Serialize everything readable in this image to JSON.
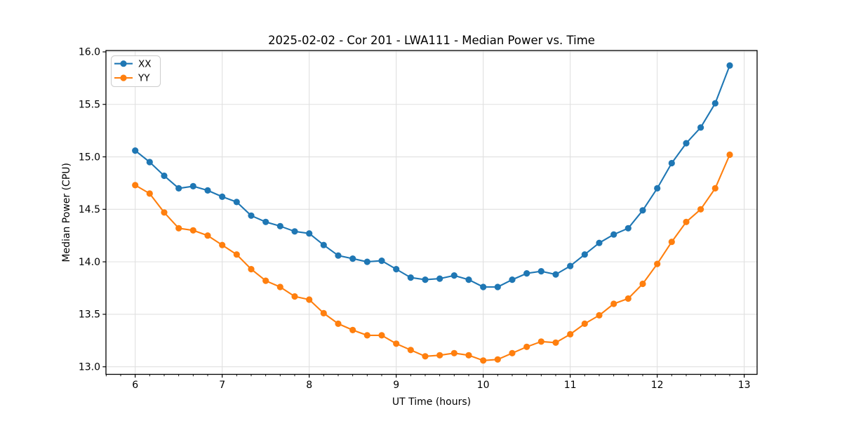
{
  "chart_data": {
    "type": "line",
    "title": "2025-02-02 - Cor 201 - LWA111 - Median Power vs. Time",
    "xlabel": "UT Time (hours)",
    "ylabel": "Median Power (CPU)",
    "xlim": [
      5.664,
      13.148
    ],
    "ylim": [
      12.928,
      16.013
    ],
    "xticks": [
      6,
      7,
      8,
      9,
      10,
      11,
      12,
      13
    ],
    "xtick_labels": [
      "6",
      "7",
      "8",
      "9",
      "10",
      "11",
      "12",
      "13"
    ],
    "yticks": [
      13.0,
      13.5,
      14.0,
      14.5,
      15.0,
      15.5,
      16.0
    ],
    "ytick_labels": [
      "13.0",
      "13.5",
      "14.0",
      "14.5",
      "15.0",
      "15.5",
      "16.0"
    ],
    "x_minor_tick_interval": 0.16667,
    "grid": true,
    "legend_position": "upper left",
    "marker": "circle",
    "x": [
      6,
      6.1667,
      6.3333,
      6.5,
      6.6667,
      6.8333,
      7,
      7.1667,
      7.3333,
      7.5,
      7.6667,
      7.8333,
      8,
      8.1667,
      8.3333,
      8.5,
      8.6667,
      8.8333,
      9,
      9.1667,
      9.3333,
      9.5,
      9.6667,
      9.8333,
      10,
      10.1667,
      10.3333,
      10.5,
      10.6667,
      10.8333,
      11,
      11.1667,
      11.3333,
      11.5,
      11.6667,
      11.8333,
      12,
      12.1667,
      12.3333,
      12.5,
      12.6667,
      12.8333
    ],
    "series": [
      {
        "name": "XX",
        "color": "#1f77b4",
        "values": [
          15.06,
          14.95,
          14.82,
          14.7,
          14.72,
          14.68,
          14.62,
          14.57,
          14.44,
          14.38,
          14.34,
          14.29,
          14.27,
          14.16,
          14.06,
          14.03,
          14.0,
          14.01,
          13.93,
          13.85,
          13.83,
          13.84,
          13.87,
          13.83,
          13.76,
          13.76,
          13.83,
          13.89,
          13.91,
          13.88,
          13.96,
          14.07,
          14.18,
          14.26,
          14.32,
          14.49,
          14.7,
          14.94,
          15.13,
          15.28,
          15.51,
          15.87
        ]
      },
      {
        "name": "YY",
        "color": "#ff7f0e",
        "values": [
          14.73,
          14.65,
          14.47,
          14.32,
          14.3,
          14.25,
          14.16,
          14.07,
          13.93,
          13.82,
          13.76,
          13.67,
          13.64,
          13.51,
          13.41,
          13.35,
          13.3,
          13.3,
          13.22,
          13.16,
          13.1,
          13.11,
          13.13,
          13.11,
          13.06,
          13.07,
          13.13,
          13.19,
          13.24,
          13.23,
          13.31,
          13.41,
          13.49,
          13.6,
          13.65,
          13.79,
          13.98,
          14.19,
          14.38,
          14.5,
          14.7,
          15.02
        ]
      }
    ]
  },
  "colors": {
    "background": "#ffffff",
    "grid": "#e0e0e0",
    "spine": "#000000",
    "series_blue": "#1f77b4",
    "series_orange": "#ff7f0e",
    "legend_border": "#cccccc"
  }
}
